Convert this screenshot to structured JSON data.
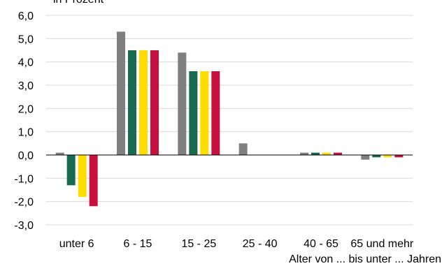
{
  "chart_data": {
    "type": "bar",
    "title": "in Prozent",
    "xlabel": "Alter von ... bis unter ... Jahren",
    "ylabel": "",
    "ylim": [
      -3.0,
      6.0
    ],
    "yticks": [
      "6,0",
      "5,0",
      "4,0",
      "3,0",
      "2,0",
      "1,0",
      "0,0",
      "-1,0",
      "-2,0",
      "-3,0"
    ],
    "ytick_values": [
      6,
      5,
      4,
      3,
      2,
      1,
      0,
      -1,
      -2,
      -3
    ],
    "grid": true,
    "legend": "none",
    "categories": [
      "unter 6",
      "6 - 15",
      "15 - 25",
      "25 - 40",
      "40 - 65",
      "65 und mehr"
    ],
    "series": [
      {
        "color": "#7f7f7f",
        "values": [
          0.1,
          5.3,
          4.4,
          0.5,
          0.1,
          -0.2
        ]
      },
      {
        "color": "#156a4f",
        "values": [
          -1.3,
          4.5,
          3.6,
          0.0,
          0.1,
          -0.1
        ]
      },
      {
        "color": "#ffdd00",
        "values": [
          -1.8,
          4.5,
          3.6,
          0.0,
          0.1,
          -0.1
        ]
      },
      {
        "color": "#c8103e",
        "values": [
          -2.2,
          4.5,
          3.6,
          0.0,
          0.1,
          -0.1
        ]
      }
    ]
  }
}
